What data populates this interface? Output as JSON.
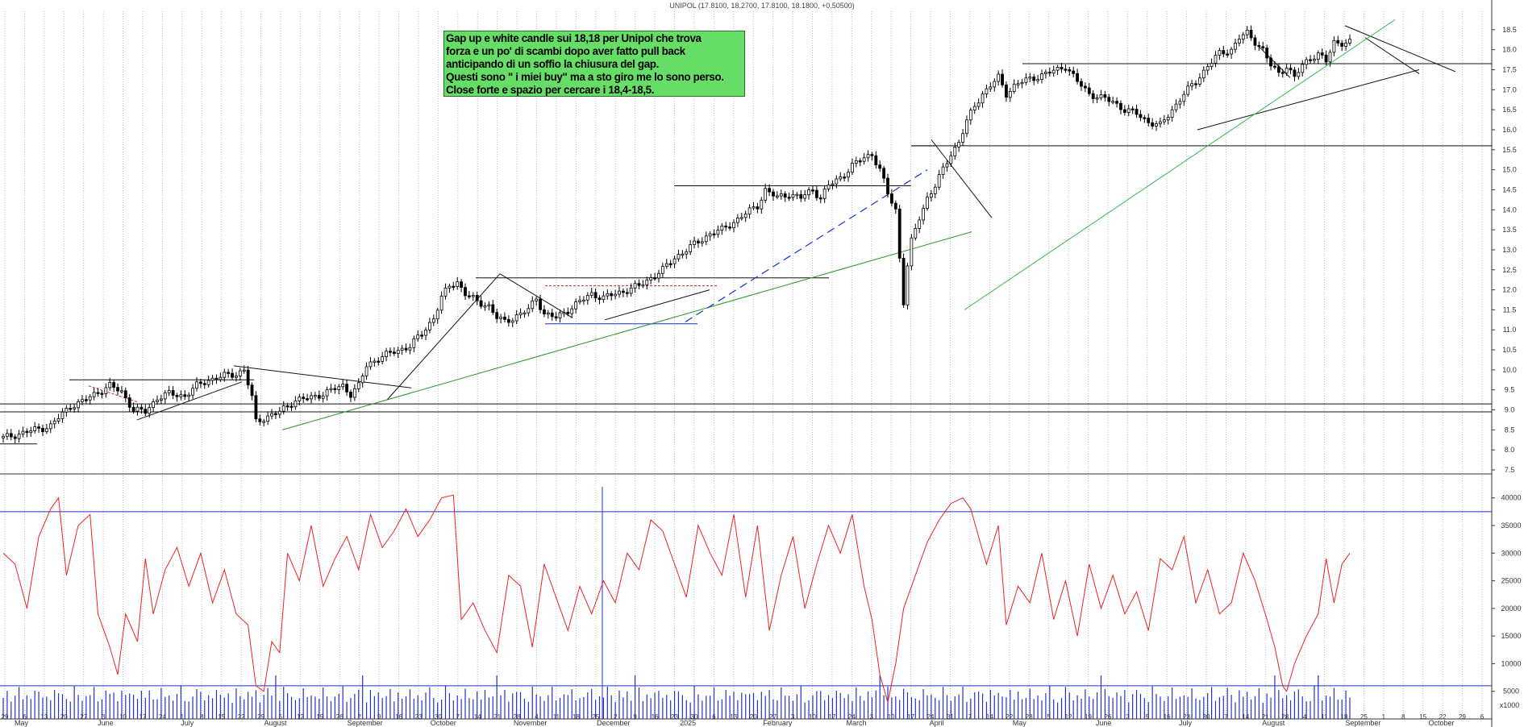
{
  "chart_data": {
    "type": "candlestick",
    "title": "UNIPOL (17.8100, 18.2700, 17.8100, 18.1800, +0.50500)",
    "annotation": "Gap up e white candle sui 18,18 per Unipol che trova\nforza e un po' di scambi dopo aver fatto pull back\nanticipando di un soffio la chiusura del gap.\nQuesti sono \" i miei buy\" ma a sto giro me lo sono perso.\nClose forte e spazio per cercare i 18,4-18,5.",
    "price_axis": {
      "ylim": [
        7.4,
        19.0
      ],
      "ticks": [
        "7.5",
        "8.0",
        "8.5",
        "9.0",
        "9.5",
        "10.0",
        "10.5",
        "11.0",
        "11.5",
        "12.0",
        "12.5",
        "13.0",
        "13.5",
        "14.0",
        "14.5",
        "15.0",
        "15.5",
        "16.0",
        "16.5",
        "17.0",
        "17.5",
        "18.0",
        "18.5"
      ]
    },
    "oscillator_axis": {
      "ylim": [
        0,
        42000
      ],
      "ticks": [
        "5000",
        "10000",
        "15000",
        "20000",
        "25000",
        "30000",
        "35000",
        "40000"
      ]
    },
    "volume_label": "x1000",
    "months": [
      "May",
      "June",
      "July",
      "August",
      "September",
      "October",
      "November",
      "December",
      "2025",
      "February",
      "March",
      "April",
      "May",
      "June",
      "July",
      "August",
      "September",
      "October"
    ],
    "day_ticks": [
      "29",
      "6",
      "13",
      "20",
      "27",
      "3",
      "10",
      "17",
      "24",
      "1",
      "8",
      "15",
      "22",
      "29",
      "5",
      "12",
      "19",
      "26",
      "2",
      "9",
      "16",
      "23",
      "30",
      "7",
      "14",
      "21",
      "28",
      "4",
      "11",
      "18",
      "25",
      "2",
      "9",
      "16",
      "23",
      "30",
      "6",
      "13",
      "20",
      "27",
      "3",
      "10",
      "17",
      "24",
      "3",
      "10",
      "17",
      "24",
      "31",
      "7",
      "14",
      "22",
      "28",
      "5",
      "12",
      "19",
      "26",
      "2",
      "9",
      "16",
      "23",
      "30",
      "7",
      "14",
      "21",
      "28",
      "4",
      "11",
      "18",
      "25",
      "1",
      "8",
      "15",
      "22",
      "29",
      "6"
    ],
    "price_path": [
      [
        0,
        8.3
      ],
      [
        6,
        8.45
      ],
      [
        12,
        8.6
      ],
      [
        17,
        9.1
      ],
      [
        20,
        9.2
      ],
      [
        24,
        9.45
      ],
      [
        27,
        9.6
      ],
      [
        30,
        9.45
      ],
      [
        33,
        9.0
      ],
      [
        36,
        8.95
      ],
      [
        39,
        9.3
      ],
      [
        42,
        9.4
      ],
      [
        46,
        9.35
      ],
      [
        49,
        9.6
      ],
      [
        52,
        9.75
      ],
      [
        56,
        9.85
      ],
      [
        59,
        9.9
      ],
      [
        61,
        10.0
      ],
      [
        63,
        9.3
      ],
      [
        64,
        8.7
      ],
      [
        66,
        8.8
      ],
      [
        70,
        8.95
      ],
      [
        74,
        9.25
      ],
      [
        78,
        9.3
      ],
      [
        82,
        9.45
      ],
      [
        86,
        9.6
      ],
      [
        88,
        9.4
      ],
      [
        90,
        9.6
      ],
      [
        92,
        10.1
      ],
      [
        95,
        10.3
      ],
      [
        99,
        10.45
      ],
      [
        103,
        10.6
      ],
      [
        106,
        10.9
      ],
      [
        109,
        11.3
      ],
      [
        111,
        11.8
      ],
      [
        113,
        12.1
      ],
      [
        115,
        12.2
      ],
      [
        117,
        11.9
      ],
      [
        120,
        11.7
      ],
      [
        123,
        11.6
      ],
      [
        125,
        11.3
      ],
      [
        127,
        11.2
      ],
      [
        130,
        11.35
      ],
      [
        133,
        11.5
      ],
      [
        135,
        11.8
      ],
      [
        137,
        11.4
      ],
      [
        140,
        11.3
      ],
      [
        143,
        11.5
      ],
      [
        146,
        11.7
      ],
      [
        149,
        11.9
      ],
      [
        152,
        11.8
      ],
      [
        155,
        11.9
      ],
      [
        158,
        12.0
      ],
      [
        161,
        12.1
      ],
      [
        164,
        12.3
      ],
      [
        167,
        12.5
      ],
      [
        170,
        12.8
      ],
      [
        173,
        13.0
      ],
      [
        176,
        13.2
      ],
      [
        179,
        13.4
      ],
      [
        182,
        13.5
      ],
      [
        185,
        13.7
      ],
      [
        188,
        13.9
      ],
      [
        191,
        14.1
      ],
      [
        193,
        14.5
      ],
      [
        196,
        14.3
      ],
      [
        199,
        14.4
      ],
      [
        202,
        14.3
      ],
      [
        205,
        14.5
      ],
      [
        207,
        14.3
      ],
      [
        209,
        14.6
      ],
      [
        212,
        14.8
      ],
      [
        215,
        15.1
      ],
      [
        218,
        15.3
      ],
      [
        220,
        15.4
      ],
      [
        222,
        15.0
      ],
      [
        224,
        14.4
      ],
      [
        226,
        14.0
      ],
      [
        227,
        12.8
      ],
      [
        228,
        11.7
      ],
      [
        229,
        12.6
      ],
      [
        230,
        13.2
      ],
      [
        232,
        13.8
      ],
      [
        234,
        14.3
      ],
      [
        236,
        14.6
      ],
      [
        238,
        15.0
      ],
      [
        240,
        15.4
      ],
      [
        242,
        15.7
      ],
      [
        244,
        16.2
      ],
      [
        246,
        16.6
      ],
      [
        248,
        16.9
      ],
      [
        250,
        17.1
      ],
      [
        252,
        17.3
      ],
      [
        254,
        16.9
      ],
      [
        256,
        17.1
      ],
      [
        258,
        17.2
      ],
      [
        261,
        17.3
      ],
      [
        264,
        17.4
      ],
      [
        267,
        17.5
      ],
      [
        269,
        17.6
      ],
      [
        272,
        17.2
      ],
      [
        275,
        16.9
      ],
      [
        278,
        16.8
      ],
      [
        281,
        16.7
      ],
      [
        284,
        16.5
      ],
      [
        287,
        16.4
      ],
      [
        290,
        16.2
      ],
      [
        293,
        16.1
      ],
      [
        296,
        16.5
      ],
      [
        299,
        16.9
      ],
      [
        302,
        17.2
      ],
      [
        305,
        17.6
      ],
      [
        308,
        17.9
      ],
      [
        311,
        18.0
      ],
      [
        313,
        18.3
      ],
      [
        315,
        18.4
      ],
      [
        317,
        18.2
      ],
      [
        319,
        18.0
      ],
      [
        321,
        17.6
      ],
      [
        323,
        17.4
      ],
      [
        325,
        17.6
      ],
      [
        327,
        17.3
      ],
      [
        329,
        17.6
      ],
      [
        331,
        17.8
      ],
      [
        333,
        17.9
      ],
      [
        335,
        17.7
      ],
      [
        337,
        18.18
      ]
    ],
    "osc_path": [
      [
        0,
        30000
      ],
      [
        3,
        28000
      ],
      [
        6,
        20000
      ],
      [
        9,
        33000
      ],
      [
        12,
        38000
      ],
      [
        14,
        40000
      ],
      [
        16,
        26000
      ],
      [
        19,
        35000
      ],
      [
        22,
        37000
      ],
      [
        24,
        19000
      ],
      [
        27,
        13000
      ],
      [
        29,
        8000
      ],
      [
        31,
        19000
      ],
      [
        34,
        14000
      ],
      [
        36,
        29000
      ],
      [
        38,
        19000
      ],
      [
        41,
        27000
      ],
      [
        44,
        31000
      ],
      [
        47,
        24000
      ],
      [
        50,
        30000
      ],
      [
        53,
        21000
      ],
      [
        56,
        27000
      ],
      [
        59,
        19000
      ],
      [
        62,
        17000
      ],
      [
        64,
        6000
      ],
      [
        66,
        5000
      ],
      [
        68,
        14000
      ],
      [
        70,
        12000
      ],
      [
        72,
        30000
      ],
      [
        75,
        25000
      ],
      [
        78,
        35000
      ],
      [
        81,
        24000
      ],
      [
        84,
        29000
      ],
      [
        87,
        33000
      ],
      [
        90,
        27000
      ],
      [
        93,
        37000
      ],
      [
        96,
        31000
      ],
      [
        99,
        34000
      ],
      [
        102,
        38000
      ],
      [
        105,
        33000
      ],
      [
        108,
        36000
      ],
      [
        111,
        40000
      ],
      [
        114,
        40500
      ],
      [
        116,
        18000
      ],
      [
        119,
        21000
      ],
      [
        122,
        16000
      ],
      [
        125,
        12000
      ],
      [
        128,
        26000
      ],
      [
        131,
        24000
      ],
      [
        134,
        13000
      ],
      [
        137,
        28000
      ],
      [
        140,
        22000
      ],
      [
        143,
        16000
      ],
      [
        146,
        24000
      ],
      [
        149,
        19000
      ],
      [
        152,
        25000
      ],
      [
        155,
        21000
      ],
      [
        158,
        30000
      ],
      [
        161,
        27000
      ],
      [
        164,
        36000
      ],
      [
        167,
        34000
      ],
      [
        170,
        28000
      ],
      [
        173,
        22000
      ],
      [
        176,
        35000
      ],
      [
        179,
        30000
      ],
      [
        182,
        26000
      ],
      [
        185,
        37000
      ],
      [
        188,
        22000
      ],
      [
        191,
        35000
      ],
      [
        194,
        16000
      ],
      [
        197,
        26000
      ],
      [
        200,
        33000
      ],
      [
        203,
        20000
      ],
      [
        206,
        28000
      ],
      [
        209,
        35000
      ],
      [
        212,
        30000
      ],
      [
        215,
        37000
      ],
      [
        218,
        24000
      ],
      [
        220,
        18000
      ],
      [
        222,
        8000
      ],
      [
        224,
        3000
      ],
      [
        226,
        10000
      ],
      [
        228,
        20000
      ],
      [
        231,
        26000
      ],
      [
        234,
        32000
      ],
      [
        237,
        36000
      ],
      [
        240,
        39000
      ],
      [
        243,
        40000
      ],
      [
        245,
        38000
      ],
      [
        247,
        33000
      ],
      [
        249,
        28000
      ],
      [
        252,
        35000
      ],
      [
        254,
        17000
      ],
      [
        257,
        24000
      ],
      [
        260,
        21000
      ],
      [
        263,
        30000
      ],
      [
        266,
        18000
      ],
      [
        269,
        25000
      ],
      [
        272,
        15000
      ],
      [
        275,
        28000
      ],
      [
        278,
        20000
      ],
      [
        281,
        26000
      ],
      [
        284,
        19000
      ],
      [
        287,
        23000
      ],
      [
        290,
        16000
      ],
      [
        293,
        29000
      ],
      [
        296,
        27000
      ],
      [
        299,
        33000
      ],
      [
        302,
        21000
      ],
      [
        305,
        27000
      ],
      [
        308,
        19000
      ],
      [
        311,
        21000
      ],
      [
        314,
        30000
      ],
      [
        317,
        25000
      ],
      [
        320,
        18000
      ],
      [
        322,
        13000
      ],
      [
        324,
        6000
      ],
      [
        325,
        5000
      ],
      [
        327,
        10000
      ],
      [
        330,
        15000
      ],
      [
        333,
        19000
      ],
      [
        335,
        29000
      ],
      [
        337,
        21000
      ],
      [
        339,
        28000
      ],
      [
        341,
        30000
      ]
    ],
    "osc_lines": [
      37500,
      6000
    ],
    "grid": true
  }
}
